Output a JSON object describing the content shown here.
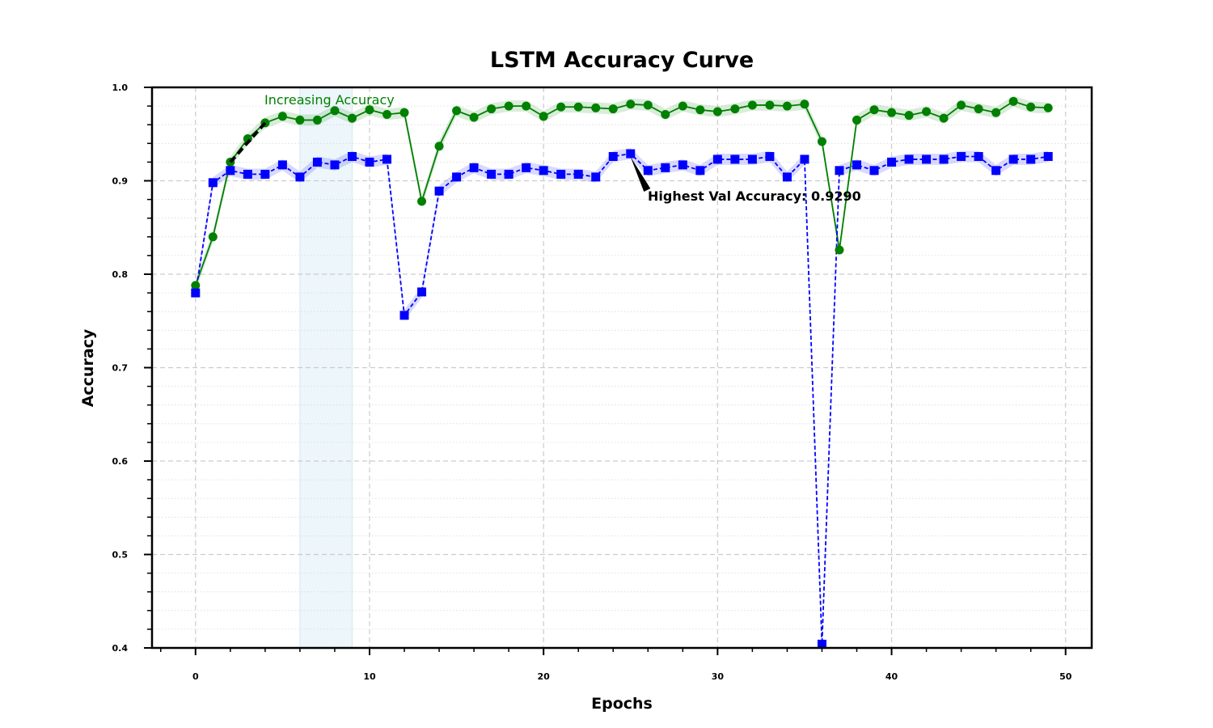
{
  "chart_data": {
    "type": "line",
    "title": "LSTM Accuracy Curve",
    "xlabel": "Epochs",
    "ylabel": "Accuracy",
    "xlim": [
      -2.5,
      51.5
    ],
    "ylim": [
      0.4,
      1.0
    ],
    "xticks": [
      0,
      10,
      20,
      30,
      40,
      50
    ],
    "yticks": [
      0.4,
      0.5,
      0.6,
      0.7,
      0.8,
      0.9,
      1.0
    ],
    "grid": true,
    "legend": "none",
    "x": [
      0,
      1,
      2,
      3,
      4,
      5,
      6,
      7,
      8,
      9,
      10,
      11,
      12,
      13,
      14,
      15,
      16,
      17,
      18,
      19,
      20,
      21,
      22,
      23,
      24,
      25,
      26,
      27,
      28,
      29,
      30,
      31,
      32,
      33,
      34,
      35,
      36,
      37,
      38,
      39,
      40,
      41,
      42,
      43,
      44,
      45,
      46,
      47,
      48,
      49
    ],
    "series": [
      {
        "color": "#008000",
        "line_style": "solid",
        "marker": "circle",
        "values": [
          0.788,
          0.84,
          0.92,
          0.945,
          0.962,
          0.969,
          0.965,
          0.965,
          0.975,
          0.967,
          0.976,
          0.971,
          0.973,
          0.878,
          0.937,
          0.975,
          0.968,
          0.977,
          0.98,
          0.98,
          0.969,
          0.979,
          0.979,
          0.978,
          0.977,
          0.982,
          0.981,
          0.971,
          0.98,
          0.976,
          0.974,
          0.977,
          0.981,
          0.981,
          0.98,
          0.982,
          0.942,
          0.826,
          0.965,
          0.976,
          0.973,
          0.97,
          0.974,
          0.967,
          0.981,
          0.977,
          0.973,
          0.985,
          0.979,
          0.978
        ]
      },
      {
        "color": "#0000ff",
        "line_style": "dashed",
        "marker": "square",
        "values": [
          0.78,
          0.898,
          0.911,
          0.907,
          0.907,
          0.917,
          0.904,
          0.92,
          0.917,
          0.926,
          0.92,
          0.923,
          0.756,
          0.781,
          0.889,
          0.904,
          0.914,
          0.907,
          0.907,
          0.914,
          0.911,
          0.907,
          0.907,
          0.904,
          0.926,
          0.929,
          0.911,
          0.914,
          0.917,
          0.911,
          0.923,
          0.923,
          0.923,
          0.926,
          0.904,
          0.923,
          0.404,
          0.911,
          0.917,
          0.911,
          0.92,
          0.923,
          0.923,
          0.923,
          0.926,
          0.926,
          0.911,
          0.923,
          0.923,
          0.926
        ]
      }
    ],
    "shaded_region": {
      "x_start": 6,
      "x_end": 9,
      "color": "#add8e6"
    },
    "annotations": [
      {
        "text": "Increasing Accuracy",
        "color": "#008000",
        "arrow_from": [
          4,
          0.962
        ],
        "arrow_to": [
          2,
          0.92
        ]
      },
      {
        "text": "Highest Val Accuracy: 0.9290",
        "color": "#000000",
        "arrow_from": [
          26,
          0.88
        ],
        "arrow_to": [
          25,
          0.929
        ]
      }
    ]
  }
}
